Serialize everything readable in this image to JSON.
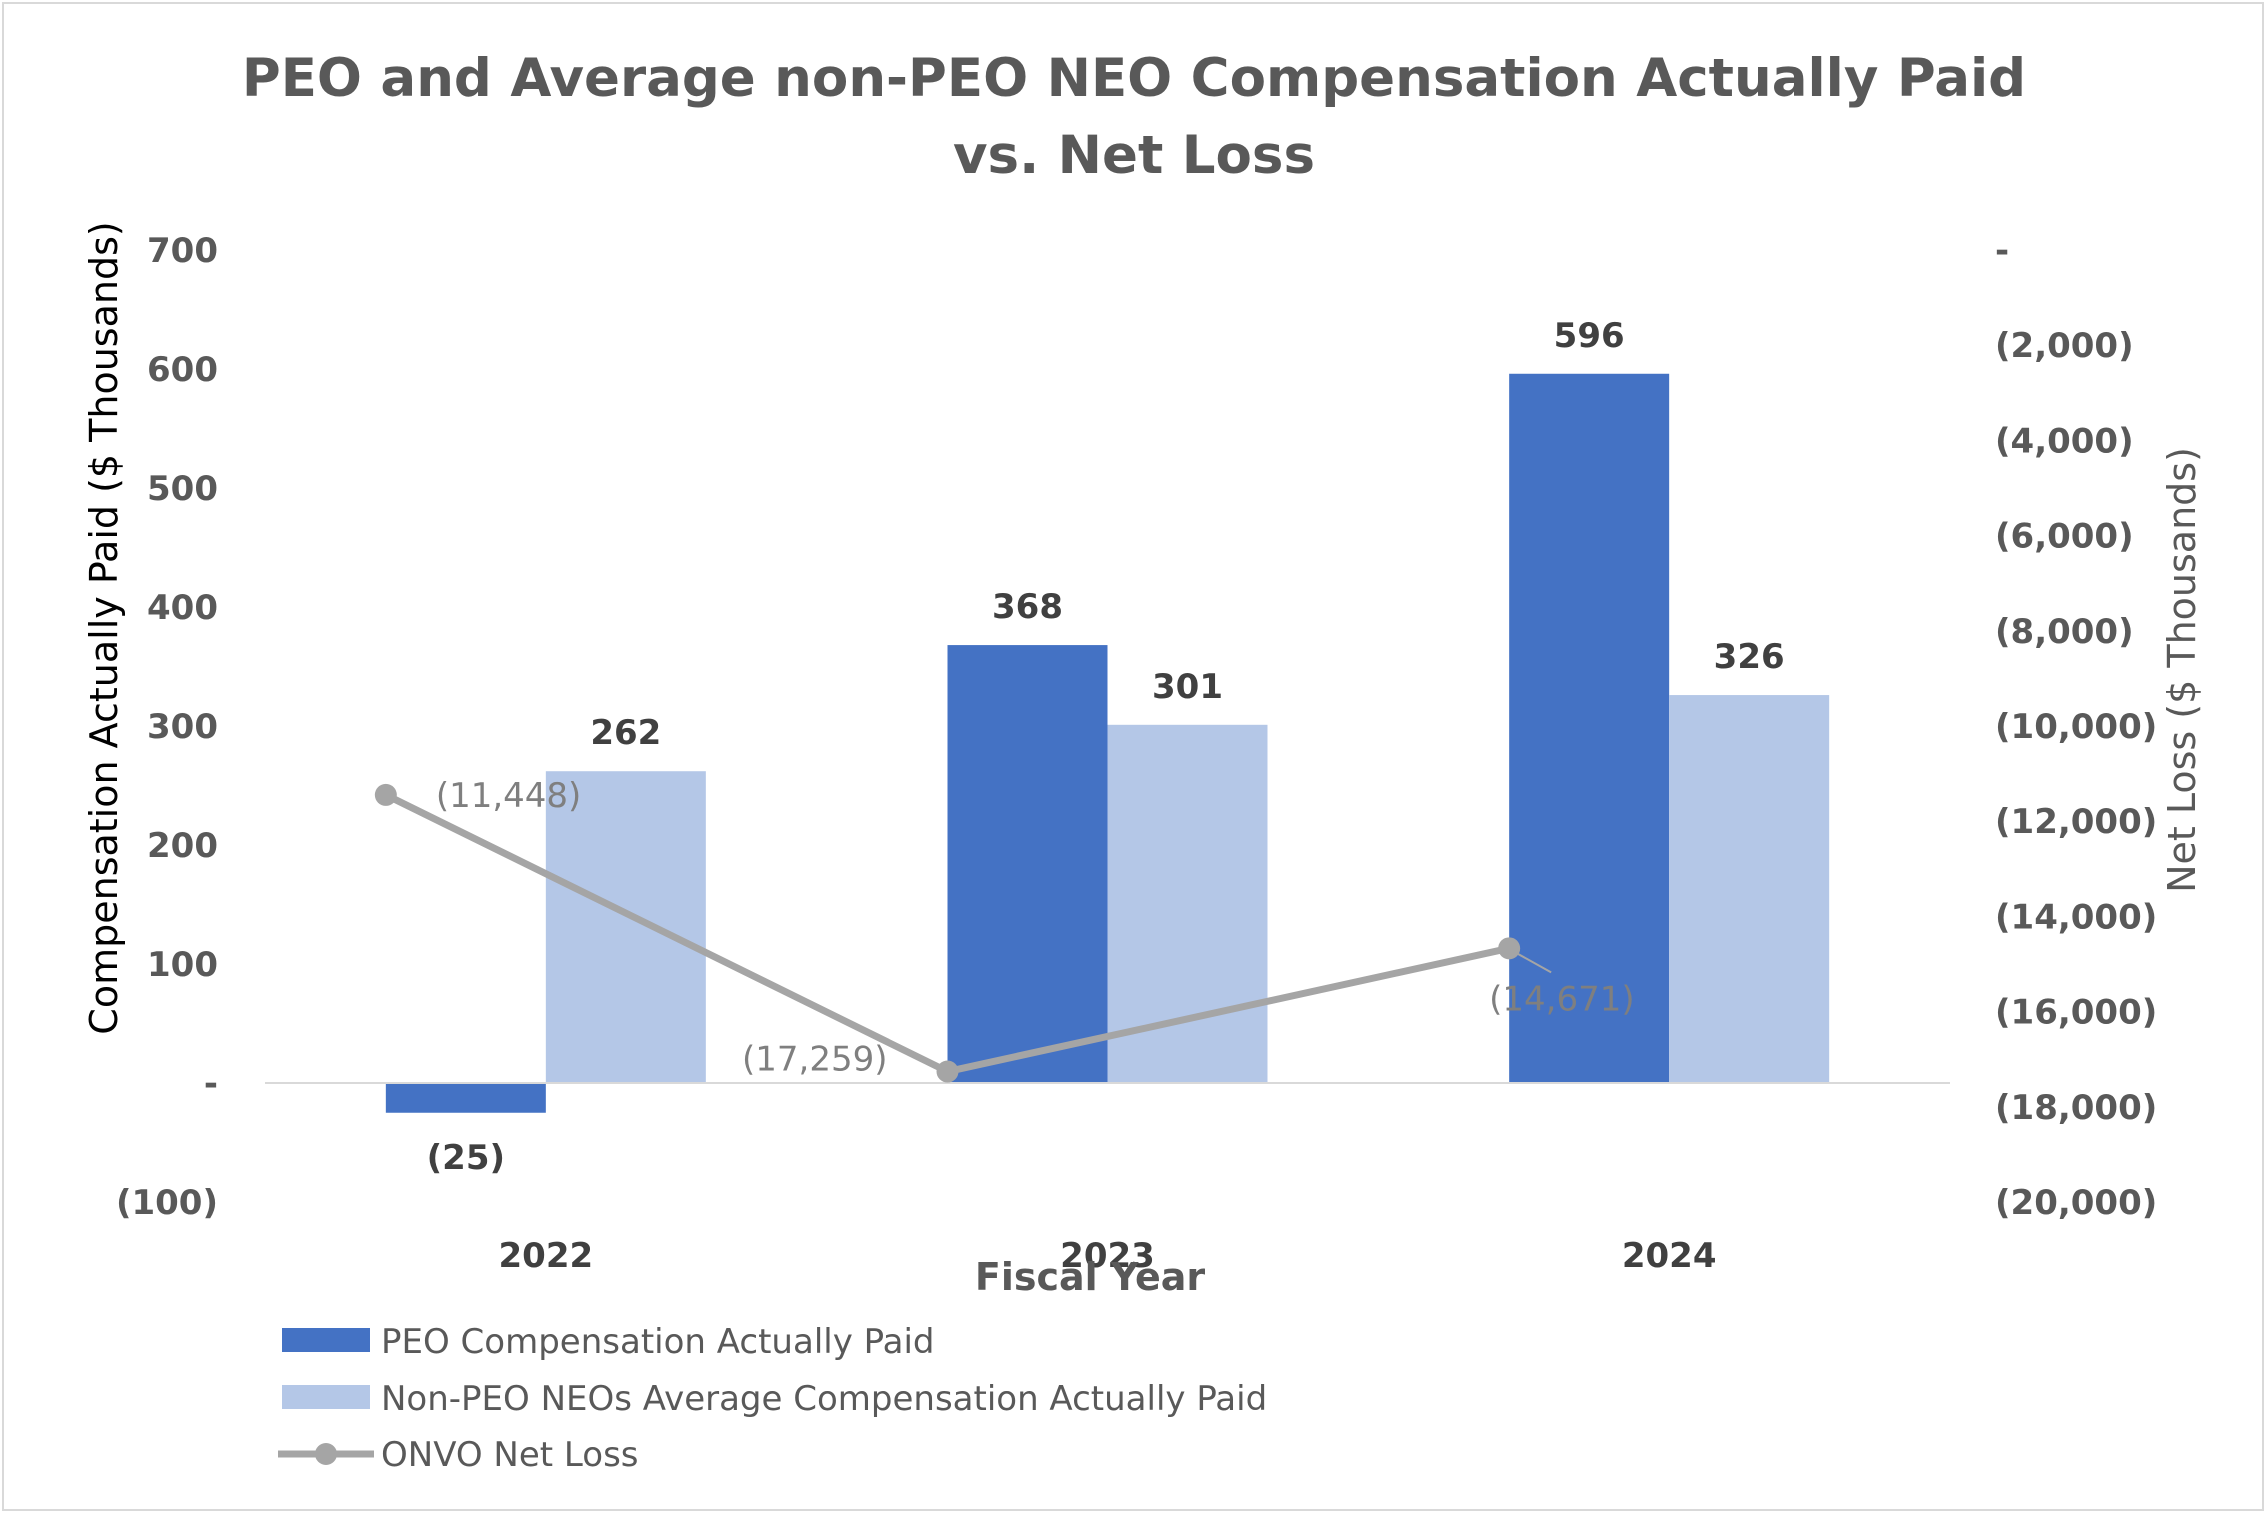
{
  "chart_data": {
    "type": "bar",
    "title": "PEO and Average non-PEO NEO Compensation Actually Paid vs. Net Loss",
    "title_lines": [
      "PEO and Average non-PEO NEO Compensation Actually Paid",
      "vs. Net Loss"
    ],
    "xlabel": "Fiscal Year",
    "ylabel": "Compensation Actually Paid ($ Thousands)",
    "y2label": "Net Loss ($ Thousands)",
    "categories": [
      "2022",
      "2023",
      "2024"
    ],
    "ylim": [
      -100,
      700
    ],
    "yticks": [
      700,
      600,
      500,
      400,
      300,
      200,
      100,
      0,
      -100
    ],
    "ytick_labels": [
      "700",
      "600",
      "500",
      "400",
      "300",
      "200",
      "100",
      "-",
      "(100)"
    ],
    "y2lim": [
      -20000,
      0
    ],
    "y2ticks": [
      0,
      -2000,
      -4000,
      -6000,
      -8000,
      -10000,
      -12000,
      -14000,
      -16000,
      -18000,
      -20000
    ],
    "y2tick_labels": [
      "-",
      "(2,000)",
      "(4,000)",
      "(6,000)",
      "(8,000)",
      "(10,000)",
      "(12,000)",
      "(14,000)",
      "(16,000)",
      "(18,000)",
      "(20,000)"
    ],
    "series": [
      {
        "name": "PEO Compensation Actually Paid",
        "type": "bar",
        "axis": "left",
        "color": "#4472c4",
        "values": [
          -25,
          368,
          596
        ],
        "labels": [
          "(25)",
          "368",
          "596"
        ]
      },
      {
        "name": "Non-PEO NEOs Average Compensation Actually Paid",
        "type": "bar",
        "axis": "left",
        "color": "#b4c7e7",
        "values": [
          262,
          301,
          326
        ],
        "labels": [
          "262",
          "301",
          "326"
        ]
      },
      {
        "name": "ONVO Net Loss",
        "type": "line",
        "axis": "right",
        "color": "#a5a5a5",
        "values": [
          -11448,
          -17259,
          -14671
        ],
        "labels": [
          "(11,448)",
          "(17,259)",
          "(14,671)"
        ]
      }
    ],
    "legend_position": "bottom-left",
    "grid": false
  }
}
